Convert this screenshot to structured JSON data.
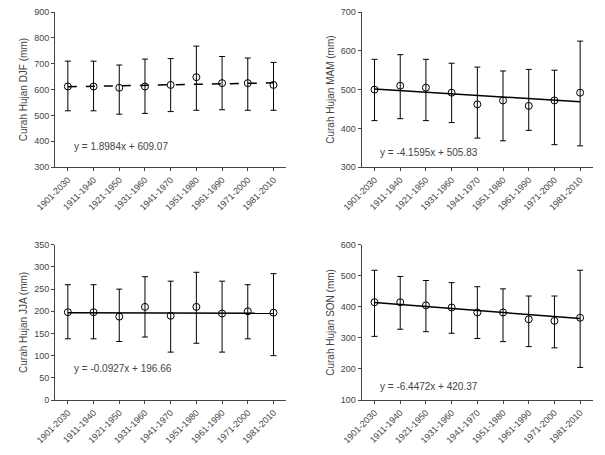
{
  "chart_data": [
    {
      "type": "scatter",
      "y_label": "Curah Hujan DJF (mm)",
      "xlim": [
        0.5,
        9.5
      ],
      "xticks": [
        {
          "value": 1,
          "label": "1901-2030"
        },
        {
          "value": 2,
          "label": "1911-1940"
        },
        {
          "value": 3,
          "label": "1921-1950"
        },
        {
          "value": 4,
          "label": "1931-1960"
        },
        {
          "value": 5,
          "label": "1941-1970"
        },
        {
          "value": 6,
          "label": "1951-1980"
        },
        {
          "value": 7,
          "label": "1961-1990"
        },
        {
          "value": 8,
          "label": "1971-2000"
        },
        {
          "value": 9,
          "label": "1981-2010"
        }
      ],
      "ylim": [
        300,
        900
      ],
      "yticks": [
        300,
        400,
        500,
        600,
        700,
        800,
        900
      ],
      "grid": false,
      "series": [
        {
          "type": "scatter",
          "marker": "circle-open",
          "color": "black",
          "x": [
            1,
            2,
            3,
            4,
            5,
            6,
            7,
            8,
            9
          ],
          "values": [
            612,
            612,
            607,
            612,
            618,
            648,
            625,
            625,
            618
          ],
          "upper": [
            710,
            710,
            695,
            718,
            720,
            768,
            728,
            722,
            705
          ],
          "lower": [
            518,
            518,
            505,
            508,
            515,
            520,
            522,
            520,
            520
          ]
        },
        {
          "type": "line",
          "line_style": "dashed",
          "color": "black",
          "x": [
            1,
            9
          ],
          "values": [
            610.9684,
            626.1556
          ]
        }
      ],
      "annotations": [
        {
          "text": "y = 1.8984x + 609.07",
          "x": 1.15,
          "y": 350
        }
      ]
    },
    {
      "type": "scatter",
      "y_label": "Curah Hujan MAM (mm)",
      "xlim": [
        0.5,
        9.5
      ],
      "xticks": [
        {
          "value": 1,
          "label": "1901-2030"
        },
        {
          "value": 2,
          "label": "1911-1940"
        },
        {
          "value": 3,
          "label": "1921-1950"
        },
        {
          "value": 4,
          "label": "1931-1960"
        },
        {
          "value": 5,
          "label": "1941-1970"
        },
        {
          "value": 6,
          "label": "1951-1980"
        },
        {
          "value": 7,
          "label": "1961-1990"
        },
        {
          "value": 8,
          "label": "1971-2000"
        },
        {
          "value": 9,
          "label": "1981-2010"
        }
      ],
      "ylim": [
        300,
        700
      ],
      "yticks": [
        300,
        400,
        500,
        600,
        700
      ],
      "grid": false,
      "series": [
        {
          "type": "scatter",
          "marker": "circle-open",
          "color": "black",
          "x": [
            1,
            2,
            3,
            4,
            5,
            6,
            7,
            8,
            9
          ],
          "values": [
            500,
            510,
            505,
            492,
            462,
            472,
            458,
            472,
            492
          ],
          "upper": [
            578,
            590,
            578,
            568,
            558,
            548,
            552,
            550,
            625
          ],
          "lower": [
            420,
            425,
            420,
            415,
            375,
            368,
            395,
            358,
            355
          ]
        },
        {
          "type": "line",
          "line_style": "solid",
          "color": "black",
          "x": [
            1,
            9
          ],
          "values": [
            501.6705,
            468.3945
          ]
        }
      ],
      "annotations": [
        {
          "text": "y = -4.1595x + 505.83",
          "x": 1.15,
          "y": 318
        }
      ]
    },
    {
      "type": "scatter",
      "y_label": "Curah Hujan JJA (mm)",
      "xlim": [
        0.5,
        9.5
      ],
      "xticks": [
        {
          "value": 1,
          "label": "1901-2030"
        },
        {
          "value": 2,
          "label": "1911-1940"
        },
        {
          "value": 3,
          "label": "1921-1950"
        },
        {
          "value": 4,
          "label": "1931-1960"
        },
        {
          "value": 5,
          "label": "1941-1970"
        },
        {
          "value": 6,
          "label": "1951-1980"
        },
        {
          "value": 7,
          "label": "1961-1990"
        },
        {
          "value": 8,
          "label": "1971-2000"
        },
        {
          "value": 9,
          "label": "1981-2010"
        }
      ],
      "ylim": [
        0,
        350
      ],
      "yticks": [
        0,
        50,
        100,
        150,
        200,
        250,
        300,
        350
      ],
      "grid": false,
      "series": [
        {
          "type": "scatter",
          "marker": "circle-open",
          "color": "black",
          "x": [
            1,
            2,
            3,
            4,
            5,
            6,
            7,
            8,
            9
          ],
          "values": [
            198,
            198,
            188,
            210,
            190,
            210,
            195,
            200,
            197
          ],
          "upper": [
            260,
            260,
            250,
            278,
            268,
            288,
            268,
            260,
            285
          ],
          "lower": [
            138,
            138,
            132,
            142,
            108,
            128,
            108,
            138,
            100
          ]
        },
        {
          "type": "line",
          "line_style": "solid",
          "color": "black",
          "x": [
            1,
            9
          ],
          "values": [
            196.5673,
            195.8257
          ]
        }
      ],
      "annotations": [
        {
          "text": "y = -0.0927x + 196.66",
          "x": 1.15,
          "y": 55
        }
      ]
    },
    {
      "type": "scatter",
      "y_label": "Curah Hujan SON (mm)",
      "xlim": [
        0.5,
        9.5
      ],
      "xticks": [
        {
          "value": 1,
          "label": "1901-2030"
        },
        {
          "value": 2,
          "label": "1911-1940"
        },
        {
          "value": 3,
          "label": "1921-1950"
        },
        {
          "value": 4,
          "label": "1931-1960"
        },
        {
          "value": 5,
          "label": "1941-1970"
        },
        {
          "value": 6,
          "label": "1951-1980"
        },
        {
          "value": 7,
          "label": "1961-1990"
        },
        {
          "value": 8,
          "label": "1971-2000"
        },
        {
          "value": 9,
          "label": "1981-2010"
        }
      ],
      "ylim": [
        100,
        600
      ],
      "yticks": [
        100,
        200,
        300,
        400,
        500,
        600
      ],
      "grid": false,
      "series": [
        {
          "type": "scatter",
          "marker": "circle-open",
          "color": "black",
          "x": [
            1,
            2,
            3,
            4,
            5,
            6,
            7,
            8,
            9
          ],
          "values": [
            415,
            415,
            405,
            398,
            382,
            382,
            360,
            355,
            365
          ],
          "upper": [
            518,
            498,
            485,
            478,
            465,
            458,
            435,
            435,
            518
          ],
          "lower": [
            305,
            328,
            320,
            315,
            298,
            288,
            272,
            268,
            205
          ]
        },
        {
          "type": "line",
          "line_style": "solid",
          "color": "black",
          "x": [
            1,
            9
          ],
          "values": [
            413.9228,
            362.3452
          ]
        }
      ],
      "annotations": [
        {
          "text": "y = -6.4472x + 420.37",
          "x": 1.15,
          "y": 118
        }
      ]
    }
  ]
}
